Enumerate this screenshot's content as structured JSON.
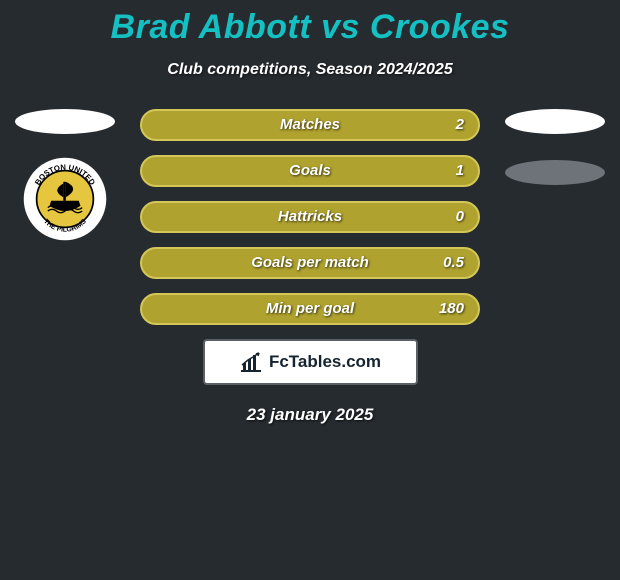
{
  "title": {
    "text": "Brad Abbott vs Crookes",
    "color": "#15c0c3"
  },
  "subtitle": "Club competitions, Season 2024/2025",
  "background_color": "#262b30",
  "left": {
    "ellipse_color": "#ffffff",
    "badge": {
      "outer_ring": "#ffffff",
      "ring_text_color": "#000000",
      "inner_bg": "#e7c63f",
      "top_text": "BOSTON UNITED",
      "bottom_text": "THE PILGRIMS",
      "ship_color": "#000000"
    }
  },
  "right": {
    "ellipse1_color": "#ffffff",
    "ellipse2_color": "#6e7379"
  },
  "bars": {
    "fill_color": "#afa22f",
    "border_color": "#d2c758",
    "items": [
      {
        "label": "Matches",
        "value": "2"
      },
      {
        "label": "Goals",
        "value": "1"
      },
      {
        "label": "Hattricks",
        "value": "0"
      },
      {
        "label": "Goals per match",
        "value": "0.5"
      },
      {
        "label": "Min per goal",
        "value": "180"
      }
    ]
  },
  "logo": {
    "text": "FcTables.com",
    "icon_color": "#16242f",
    "text_color": "#16242f"
  },
  "date": "23 january 2025"
}
